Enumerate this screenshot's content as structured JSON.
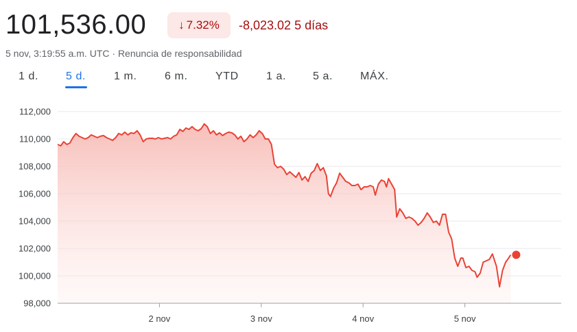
{
  "header": {
    "price": "101,536.00",
    "change_percent": "7.32%",
    "change_direction_icon": "arrow-down-icon",
    "change_amount": "-8,023.02",
    "change_period": "5 días",
    "timestamp": "5 nov, 3:19:55 a.m. UTC",
    "separator": "·",
    "disclaimer": "Renuncia de responsabilidad"
  },
  "tabs": [
    {
      "label": "1 d.",
      "active": false
    },
    {
      "label": "5 d.",
      "active": true
    },
    {
      "label": "1 m.",
      "active": false
    },
    {
      "label": "6 m.",
      "active": false
    },
    {
      "label": "YTD",
      "active": false
    },
    {
      "label": "1 a.",
      "active": false
    },
    {
      "label": "5 a.",
      "active": false
    },
    {
      "label": "MÁX.",
      "active": false
    }
  ],
  "colors": {
    "line": "#e94235",
    "fill_top": "#f6b3ad",
    "negative_text": "#a50e0e",
    "negative_bg": "#fce8e6",
    "active_tab": "#1a73e8",
    "grid": "#e8eaed"
  },
  "chart_data": {
    "type": "area",
    "title": "",
    "xlabel": "",
    "ylabel": "",
    "ylim": [
      98000,
      112000
    ],
    "yticks": [
      98000,
      100000,
      102000,
      104000,
      106000,
      108000,
      110000,
      112000
    ],
    "ytick_labels": [
      "98,000",
      "100,000",
      "102,000",
      "104,000",
      "106,000",
      "108,000",
      "110,000",
      "112,000"
    ],
    "xlim": [
      0,
      5
    ],
    "xticks": [
      1,
      2,
      3,
      4
    ],
    "xtick_labels": [
      "2 nov",
      "3 nov",
      "4 nov",
      "5 nov"
    ],
    "grid": true,
    "series": [
      {
        "values": [
          [
            0.0,
            109600
          ],
          [
            0.03,
            109500
          ],
          [
            0.06,
            109800
          ],
          [
            0.09,
            109600
          ],
          [
            0.12,
            109700
          ],
          [
            0.15,
            110100
          ],
          [
            0.18,
            110400
          ],
          [
            0.21,
            110200
          ],
          [
            0.24,
            110100
          ],
          [
            0.27,
            110000
          ],
          [
            0.3,
            110100
          ],
          [
            0.33,
            110300
          ],
          [
            0.36,
            110200
          ],
          [
            0.39,
            110100
          ],
          [
            0.42,
            110200
          ],
          [
            0.45,
            110250
          ],
          [
            0.48,
            110100
          ],
          [
            0.51,
            110000
          ],
          [
            0.54,
            109900
          ],
          [
            0.57,
            110100
          ],
          [
            0.6,
            110400
          ],
          [
            0.63,
            110300
          ],
          [
            0.66,
            110500
          ],
          [
            0.69,
            110300
          ],
          [
            0.72,
            110450
          ],
          [
            0.75,
            110400
          ],
          [
            0.78,
            110600
          ],
          [
            0.81,
            110300
          ],
          [
            0.84,
            109800
          ],
          [
            0.87,
            110000
          ],
          [
            0.9,
            110050
          ],
          [
            0.93,
            110050
          ],
          [
            0.96,
            110000
          ],
          [
            0.99,
            110100
          ],
          [
            1.02,
            110000
          ],
          [
            1.05,
            110050
          ],
          [
            1.08,
            110100
          ],
          [
            1.11,
            110000
          ],
          [
            1.14,
            110200
          ],
          [
            1.17,
            110300
          ],
          [
            1.2,
            110700
          ],
          [
            1.23,
            110550
          ],
          [
            1.26,
            110800
          ],
          [
            1.29,
            110700
          ],
          [
            1.32,
            110900
          ],
          [
            1.35,
            110700
          ],
          [
            1.38,
            110600
          ],
          [
            1.41,
            110750
          ],
          [
            1.44,
            111100
          ],
          [
            1.47,
            110900
          ],
          [
            1.5,
            110400
          ],
          [
            1.53,
            110600
          ],
          [
            1.56,
            110300
          ],
          [
            1.59,
            110450
          ],
          [
            1.62,
            110250
          ],
          [
            1.65,
            110400
          ],
          [
            1.68,
            110500
          ],
          [
            1.71,
            110450
          ],
          [
            1.74,
            110300
          ],
          [
            1.77,
            110000
          ],
          [
            1.8,
            110200
          ],
          [
            1.83,
            109800
          ],
          [
            1.86,
            110000
          ],
          [
            1.89,
            110300
          ],
          [
            1.92,
            110100
          ],
          [
            1.95,
            110300
          ],
          [
            1.98,
            110600
          ],
          [
            2.01,
            110400
          ],
          [
            2.04,
            110000
          ],
          [
            2.07,
            110000
          ],
          [
            2.1,
            109600
          ],
          [
            2.13,
            108150
          ],
          [
            2.16,
            107900
          ],
          [
            2.19,
            108000
          ],
          [
            2.22,
            107800
          ],
          [
            2.25,
            107400
          ],
          [
            2.28,
            107600
          ],
          [
            2.31,
            107400
          ],
          [
            2.34,
            107200
          ],
          [
            2.37,
            107550
          ],
          [
            2.4,
            107000
          ],
          [
            2.43,
            107250
          ],
          [
            2.46,
            106900
          ],
          [
            2.49,
            107500
          ],
          [
            2.52,
            107700
          ],
          [
            2.55,
            108200
          ],
          [
            2.58,
            107700
          ],
          [
            2.61,
            107900
          ],
          [
            2.64,
            107300
          ],
          [
            2.66,
            106000
          ],
          [
            2.68,
            105800
          ],
          [
            2.71,
            106400
          ],
          [
            2.74,
            106800
          ],
          [
            2.77,
            107500
          ],
          [
            2.8,
            107200
          ],
          [
            2.83,
            106900
          ],
          [
            2.86,
            106800
          ],
          [
            2.89,
            106600
          ],
          [
            2.92,
            106600
          ],
          [
            2.95,
            106700
          ],
          [
            2.98,
            106300
          ],
          [
            3.01,
            106500
          ],
          [
            3.04,
            106500
          ],
          [
            3.07,
            106600
          ],
          [
            3.1,
            106500
          ],
          [
            3.12,
            105900
          ],
          [
            3.15,
            106700
          ],
          [
            3.18,
            107000
          ],
          [
            3.21,
            106900
          ],
          [
            3.23,
            106500
          ],
          [
            3.25,
            107100
          ],
          [
            3.28,
            106700
          ],
          [
            3.31,
            106300
          ],
          [
            3.33,
            104300
          ],
          [
            3.36,
            104900
          ],
          [
            3.39,
            104600
          ],
          [
            3.42,
            104200
          ],
          [
            3.45,
            104300
          ],
          [
            3.48,
            104200
          ],
          [
            3.51,
            104000
          ],
          [
            3.54,
            103700
          ],
          [
            3.57,
            103900
          ],
          [
            3.6,
            104200
          ],
          [
            3.63,
            104600
          ],
          [
            3.66,
            104300
          ],
          [
            3.69,
            103900
          ],
          [
            3.72,
            104000
          ],
          [
            3.75,
            103700
          ],
          [
            3.78,
            104500
          ],
          [
            3.81,
            104500
          ],
          [
            3.84,
            103200
          ],
          [
            3.87,
            102700
          ],
          [
            3.9,
            101300
          ],
          [
            3.93,
            100700
          ],
          [
            3.96,
            101300
          ],
          [
            3.98,
            101300
          ],
          [
            4.01,
            100600
          ],
          [
            4.04,
            100700
          ],
          [
            4.07,
            100400
          ],
          [
            4.1,
            100300
          ],
          [
            4.12,
            99900
          ],
          [
            4.15,
            100200
          ],
          [
            4.18,
            101000
          ],
          [
            4.21,
            101100
          ],
          [
            4.24,
            101200
          ],
          [
            4.27,
            101600
          ],
          [
            4.31,
            100700
          ],
          [
            4.34,
            99200
          ],
          [
            4.37,
            100400
          ],
          [
            4.4,
            101000
          ],
          [
            4.42,
            101200
          ],
          [
            4.45,
            101536
          ]
        ]
      }
    ]
  }
}
